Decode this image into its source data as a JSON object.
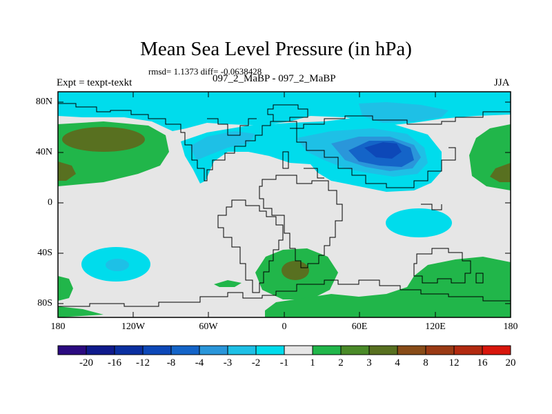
{
  "title": "Mean Sea Level Pressure (in hPa)",
  "stats": "rmsd= 1.1373 diff= -0.0638428",
  "experiment": "Expt = texpt-texkt",
  "runs": "097_2_MaBP - 097_2_MaBP",
  "season": "JJA",
  "lat_labels": [
    "80N",
    "40N",
    "0",
    "40S",
    "80S"
  ],
  "lon_labels": [
    "180",
    "120W",
    "60W",
    "0",
    "60E",
    "120E",
    "180"
  ],
  "colorbar": {
    "labels": [
      "-20",
      "-16",
      "-12",
      "-8",
      "-4",
      "-3",
      "-2",
      "-1",
      "1",
      "2",
      "3",
      "4",
      "8",
      "12",
      "16",
      "20"
    ],
    "colors": [
      "#2b0a80",
      "#0f1a8c",
      "#0a2fa0",
      "#0d48b8",
      "#1464c8",
      "#2a96da",
      "#1ec0e6",
      "#00dcec",
      "#e6e6e6",
      "#21b64a",
      "#4a8a28",
      "#587020",
      "#884c18",
      "#9a3a14",
      "#b22a10",
      "#d8160c"
    ]
  },
  "colors": {
    "land_outline": "#000000",
    "neutral": "#e6e6e6",
    "light_cyan": "#00dcec",
    "sky": "#1ec0e6",
    "blue": "#2a96da",
    "deep_blue": "#1464c8",
    "navy": "#0d48b8",
    "green": "#21b64a",
    "olive": "#587020"
  }
}
